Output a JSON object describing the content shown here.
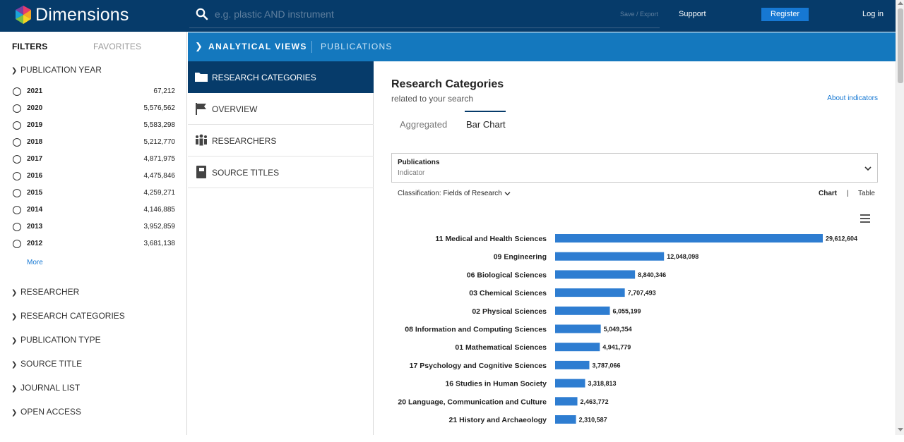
{
  "header": {
    "logo_text": "Dimensions",
    "search_placeholder": "e.g. plastic AND instrument",
    "save_export": "Save / Export",
    "support": "Support",
    "register": "Register",
    "login": "Log in"
  },
  "filters": {
    "tab_filters": "FILTERS",
    "tab_favorites": "FAVORITES",
    "publication_year_label": "PUBLICATION YEAR",
    "years": [
      {
        "year": "2021",
        "count": "67,212"
      },
      {
        "year": "2020",
        "count": "5,576,562"
      },
      {
        "year": "2019",
        "count": "5,583,298"
      },
      {
        "year": "2018",
        "count": "5,212,770"
      },
      {
        "year": "2017",
        "count": "4,871,975"
      },
      {
        "year": "2016",
        "count": "4,475,846"
      },
      {
        "year": "2015",
        "count": "4,259,271"
      },
      {
        "year": "2014",
        "count": "4,146,885"
      },
      {
        "year": "2013",
        "count": "3,952,859"
      },
      {
        "year": "2012",
        "count": "3,681,138"
      }
    ],
    "more": "More",
    "sections": [
      "RESEARCHER",
      "RESEARCH CATEGORIES",
      "PUBLICATION TYPE",
      "SOURCE TITLE",
      "JOURNAL LIST",
      "OPEN ACCESS"
    ]
  },
  "bluebar": {
    "title": "ANALYTICAL VIEWS",
    "subtitle": "PUBLICATIONS"
  },
  "nav": {
    "items": [
      {
        "label": "RESEARCH CATEGORIES",
        "icon": "folder-icon",
        "active": true
      },
      {
        "label": "OVERVIEW",
        "icon": "flag-icon",
        "active": false
      },
      {
        "label": "RESEARCHERS",
        "icon": "people-icon",
        "active": false
      },
      {
        "label": "SOURCE TITLES",
        "icon": "book-icon",
        "active": false
      }
    ]
  },
  "content": {
    "title": "Research Categories",
    "subtitle": "related to your search",
    "about_link": "About indicators",
    "tab_aggregated": "Aggregated",
    "tab_bar_chart": "Bar Chart",
    "indicator_title": "Publications",
    "indicator_sub": "Indicator",
    "classification_label": "Classification:",
    "classification_value": "Fields of Research",
    "view_chart": "Chart",
    "view_sep": "|",
    "view_table": "Table"
  },
  "colors": {
    "topbar": "#063b6a",
    "accent": "#1478be",
    "bar": "#2e7dd1",
    "link": "#1678d3"
  },
  "chart_data": {
    "type": "bar",
    "orientation": "horizontal",
    "categories": [
      "11 Medical and Health Sciences",
      "09 Engineering",
      "06 Biological Sciences",
      "03 Chemical Sciences",
      "02 Physical Sciences",
      "08 Information and Computing Sciences",
      "01 Mathematical Sciences",
      "17 Psychology and Cognitive Sciences",
      "16 Studies in Human Society",
      "20 Language, Communication and Culture",
      "21 History and Archaeology"
    ],
    "values": [
      29612604,
      12048098,
      8840346,
      7707493,
      6055199,
      5049354,
      4941779,
      3787066,
      3318813,
      2463772,
      2310587
    ],
    "value_labels": [
      "29,612,604",
      "12,048,098",
      "8,840,346",
      "7,707,493",
      "6,055,199",
      "5,049,354",
      "4,941,779",
      "3,787,066",
      "3,318,813",
      "2,463,772",
      "2,310,587"
    ],
    "xlim": [
      0,
      29612604
    ],
    "grid": false,
    "legend": "none"
  }
}
